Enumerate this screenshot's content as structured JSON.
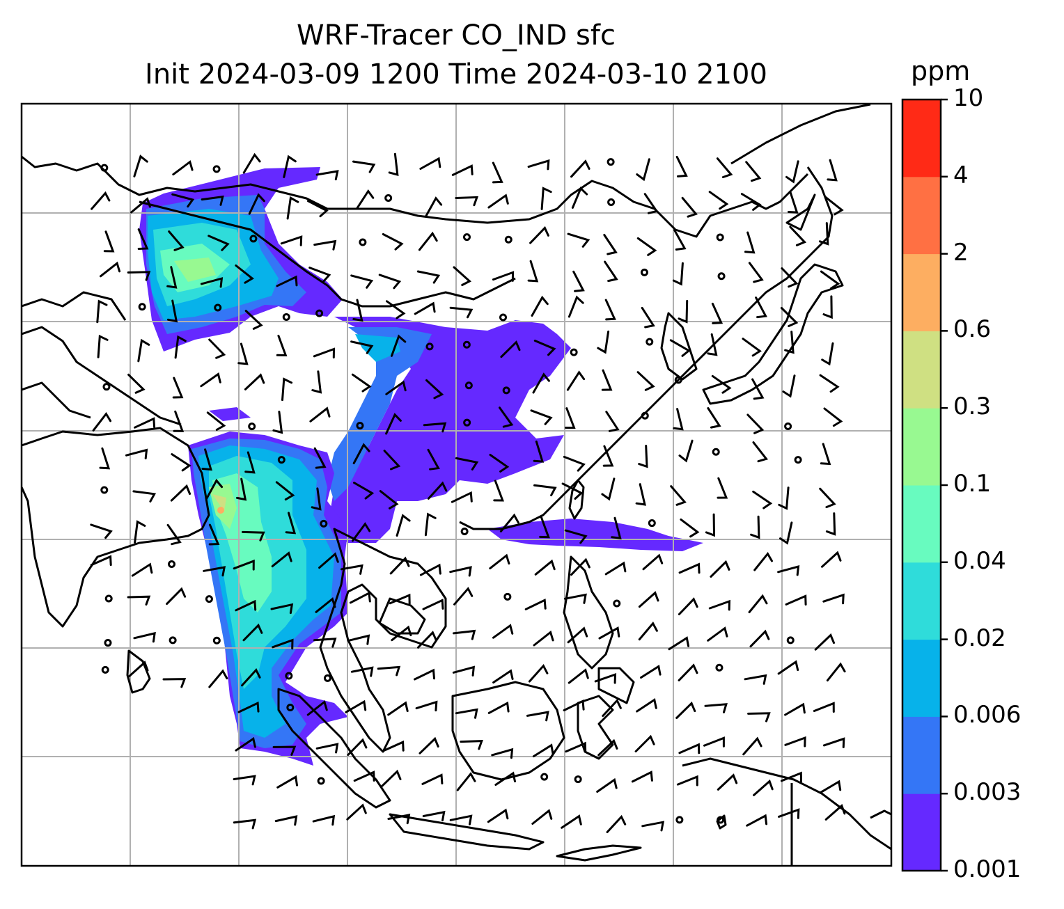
{
  "title": "WRF-Tracer CO_IND sfc",
  "subtitle": "Init 2024-03-09 1200 Time 2024-03-10 2100",
  "colorbar": {
    "unit": "ppm",
    "levels": [
      "0.001",
      "0.003",
      "0.006",
      "0.02",
      "0.04",
      "0.1",
      "0.3",
      "0.6",
      "2",
      "4",
      "10"
    ],
    "colors": [
      "#6529ff",
      "#3476f6",
      "#07b2ea",
      "#2fdcda",
      "#68fbbf",
      "#98f991",
      "#cfe082",
      "#fdae61",
      "#ff7043",
      "#ff2a16"
    ]
  },
  "map": {
    "region": "South and Southeast Asia",
    "gridlines": "on",
    "ocean_color": "#ffffff",
    "coastline_color": "#000000",
    "gridline_color": "#b0b0b0"
  }
}
